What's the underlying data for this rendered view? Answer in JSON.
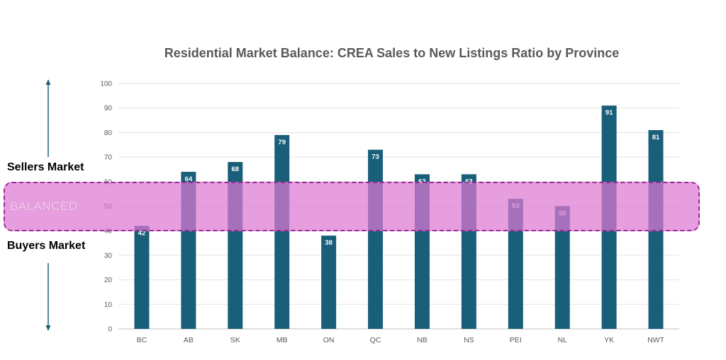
{
  "chart_data": {
    "type": "bar",
    "title": "Residential Market Balance: CREA Sales to New Listings Ratio by Province",
    "categories": [
      "BC",
      "AB",
      "SK",
      "MB",
      "ON",
      "QC",
      "NB",
      "NS",
      "PEI",
      "NL",
      "YK",
      "NWT"
    ],
    "values": [
      42,
      64,
      68,
      79,
      38,
      73,
      63,
      63,
      53,
      50,
      91,
      81
    ],
    "xlabel": "",
    "ylabel": "",
    "ylim": [
      0,
      100
    ],
    "yticks": [
      0,
      10,
      20,
      30,
      40,
      50,
      60,
      70,
      80,
      90,
      100
    ],
    "grid": true,
    "bar_color": "#1a5f7a",
    "data_labels": true
  },
  "annotations": {
    "sellers_label": "Sellers Market",
    "buyers_label": "Buyers Market",
    "balanced_label": "BALANCED",
    "balanced_range": [
      40,
      60
    ],
    "balanced_color": "#e8a0e0"
  }
}
